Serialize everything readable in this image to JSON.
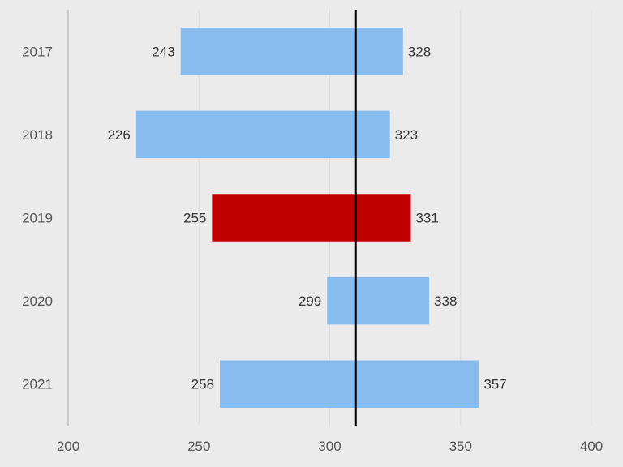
{
  "chart_data": {
    "type": "bar",
    "orientation": "horizontal",
    "style": "floating-range",
    "categories": [
      "2017",
      "2018",
      "2019",
      "2020",
      "2021"
    ],
    "series": [
      {
        "low": 243,
        "high": 328
      },
      {
        "low": 226,
        "high": 323
      },
      {
        "low": 255,
        "high": 331
      },
      {
        "low": 299,
        "high": 338
      },
      {
        "low": 258,
        "high": 357
      }
    ],
    "highlight_category": "2019",
    "reference_line": 310,
    "xlim": [
      200,
      400
    ],
    "x_ticks": [
      200,
      250,
      300,
      350,
      400
    ],
    "grid": true,
    "title": "",
    "xlabel": "",
    "ylabel": "",
    "colors": {
      "bar": "#88bbee",
      "highlight": "#c00000",
      "background": "#ebebeb",
      "grid": "#dcdcdc",
      "axis": "#aaaaaa",
      "reference": "#000000"
    }
  }
}
